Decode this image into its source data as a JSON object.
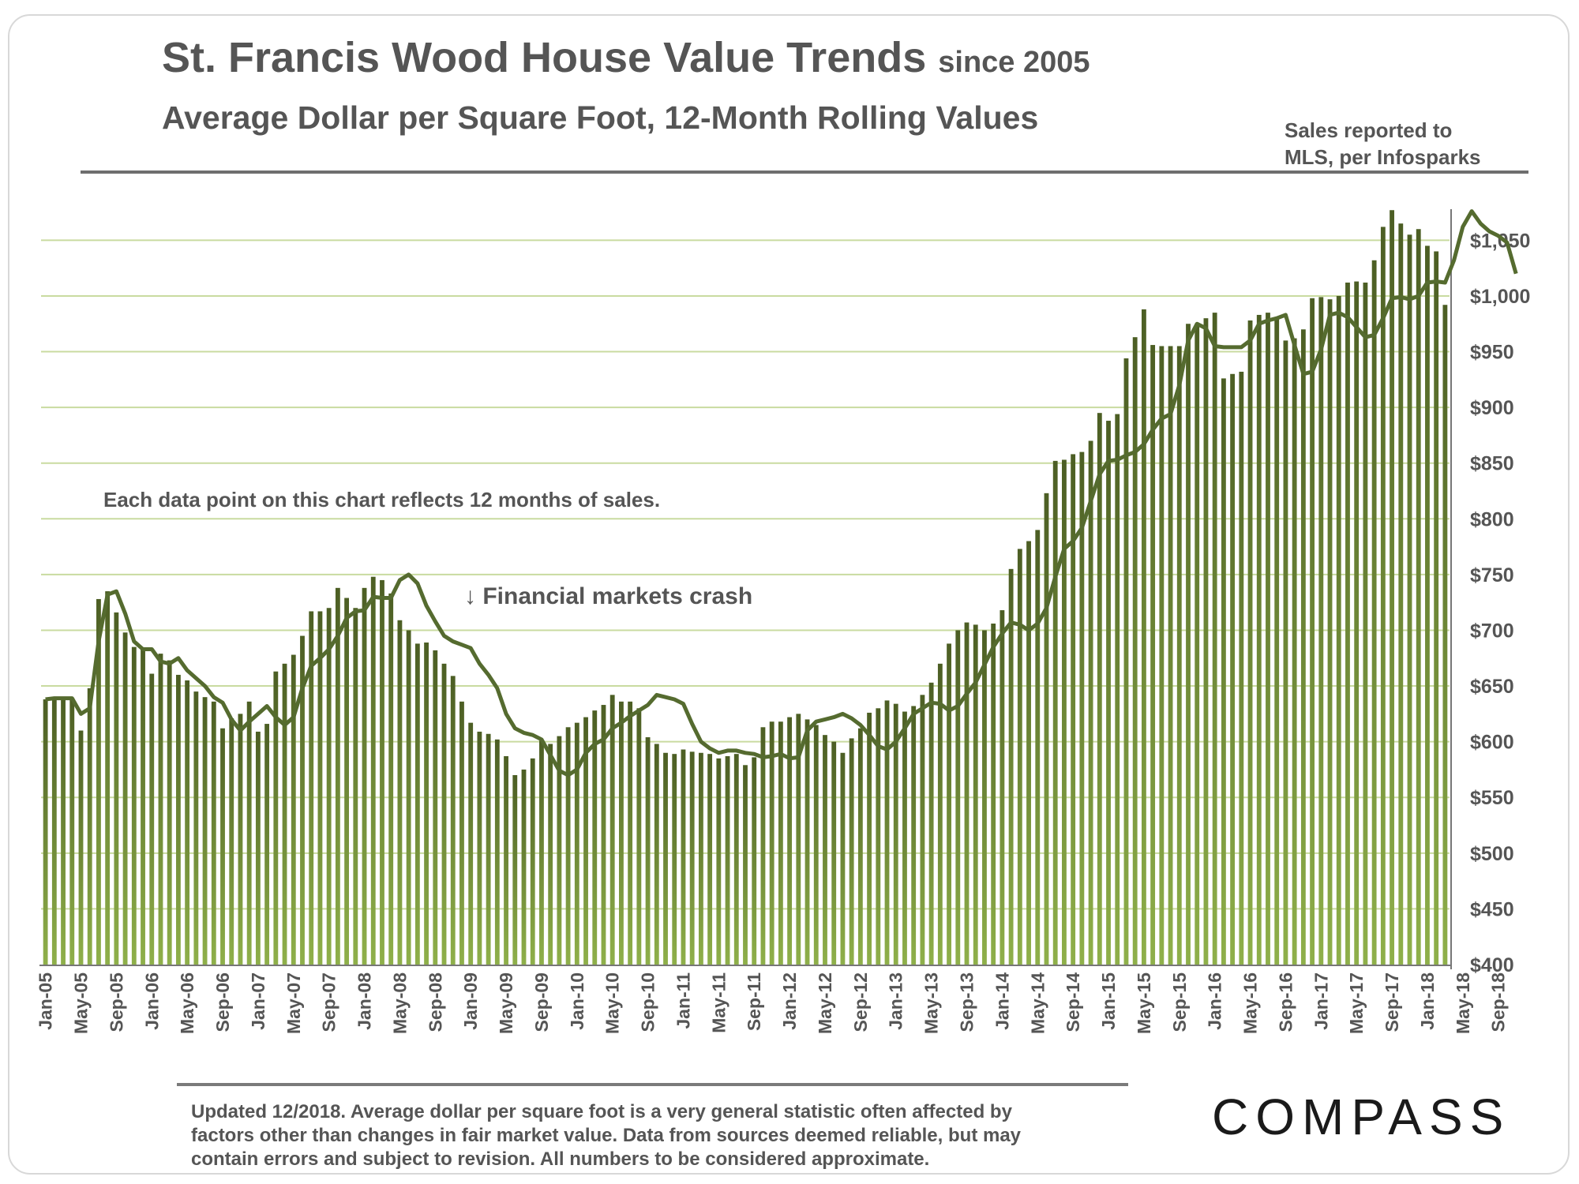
{
  "header": {
    "title_main": "St. Francis Wood House Value Trends",
    "title_suffix": "since 2005",
    "subtitle": "Average Dollar per Square Foot, 12-Month Rolling Values",
    "source_line1": "Sales reported to",
    "source_line2": "MLS, per Infosparks"
  },
  "footnote": {
    "line1": "Updated 12/2018. Average dollar per square foot is a very general statistic often affected by",
    "line2": "factors other than changes in fair market value. Data from sources deemed reliable, but may",
    "line3": "contain errors and subject to revision. All numbers to be considered approximate."
  },
  "logo": {
    "text": "COMPASS"
  },
  "colors": {
    "bar_top": "#4c5e24",
    "bar_bottom": "#8fb04a",
    "line": "#556b2f",
    "grid": "#c9dba0"
  },
  "chart_data": {
    "type": "bar",
    "title": "St. Francis Wood House Value Trends since 2005",
    "subtitle": "Average Dollar per Square Foot, 12-Month Rolling Values",
    "ylim": [
      400,
      1080
    ],
    "yticks": [
      {
        "value": 400,
        "label": "$400"
      },
      {
        "value": 450,
        "label": "$450"
      },
      {
        "value": 500,
        "label": "$500"
      },
      {
        "value": 550,
        "label": "$550"
      },
      {
        "value": 600,
        "label": "$600"
      },
      {
        "value": 650,
        "label": "$650"
      },
      {
        "value": 700,
        "label": "$700"
      },
      {
        "value": 750,
        "label": "$750"
      },
      {
        "value": 800,
        "label": "$800"
      },
      {
        "value": 850,
        "label": "$850"
      },
      {
        "value": 900,
        "label": "$900"
      },
      {
        "value": 950,
        "label": "$950"
      },
      {
        "value": 1000,
        "label": "$1,000"
      },
      {
        "value": 1050,
        "label": "$1,050"
      }
    ],
    "grid": true,
    "start_month": "Jan-05",
    "xtick_labels": [
      "Jan-05",
      "May-05",
      "Sep-05",
      "Jan-06",
      "May-06",
      "Sep-06",
      "Jan-07",
      "May-07",
      "Sep-07",
      "Jan-08",
      "May-08",
      "Sep-08",
      "Jan-09",
      "May-09",
      "Sep-09",
      "Jan-10",
      "May-10",
      "Sep-10",
      "Jan-11",
      "May-11",
      "Sep-11",
      "Jan-12",
      "May-12",
      "Sep-12",
      "Jan-13",
      "May-13",
      "Sep-13",
      "Jan-14",
      "May-14",
      "Sep-14",
      "Jan-15",
      "May-15",
      "Sep-15",
      "Jan-16",
      "May-16",
      "Sep-16",
      "Jan-17",
      "May-17",
      "Sep-17",
      "Jan-18",
      "May-18",
      "Sep-18"
    ],
    "series": [
      {
        "type": "bar",
        "values": [
          638,
          639,
          639,
          639,
          610,
          648,
          728,
          735,
          716,
          698,
          685,
          683,
          661,
          679,
          673,
          660,
          655,
          645,
          640,
          636,
          612,
          621,
          625,
          636,
          609,
          616,
          663,
          670,
          678,
          695,
          717,
          717,
          720,
          738,
          729,
          720,
          738,
          748,
          745,
          733,
          709,
          700,
          688,
          689,
          682,
          670,
          659,
          636,
          617,
          609,
          607,
          602,
          587,
          570,
          575,
          585,
          601,
          598,
          605,
          613,
          617,
          622,
          628,
          633,
          642,
          636,
          636,
          630,
          604,
          598,
          590,
          589,
          593,
          591,
          590,
          589,
          585,
          587,
          589,
          579,
          586,
          613,
          618,
          618,
          622,
          625,
          620,
          615,
          606,
          600,
          590,
          603,
          612,
          626,
          630,
          637,
          634,
          627,
          632,
          642,
          653,
          670,
          688,
          700,
          707,
          705,
          700,
          706,
          718,
          755,
          773,
          780,
          790,
          823,
          852,
          853,
          858,
          860,
          870,
          895,
          888,
          894,
          944,
          963,
          988,
          956,
          955,
          955,
          955,
          975,
          975,
          980,
          985,
          926,
          930,
          932,
          978,
          983,
          985,
          980,
          960,
          962,
          970,
          998,
          999,
          997,
          1000,
          1012,
          1013,
          1012,
          1032,
          1062,
          1077,
          1065,
          1055,
          1060,
          1045,
          1040,
          992
        ]
      },
      {
        "type": "line",
        "values": [
          638,
          639,
          639,
          639,
          625,
          630,
          690,
          732,
          735,
          715,
          690,
          683,
          683,
          672,
          670,
          675,
          664,
          657,
          650,
          640,
          635,
          620,
          610,
          618,
          625,
          632,
          622,
          615,
          622,
          648,
          668,
          675,
          683,
          695,
          711,
          717,
          718,
          730,
          729,
          729,
          745,
          750,
          742,
          722,
          708,
          695,
          690,
          687,
          684,
          670,
          660,
          648,
          625,
          612,
          608,
          606,
          602,
          588,
          574,
          570,
          575,
          590,
          598,
          602,
          612,
          617,
          623,
          628,
          633,
          642,
          640,
          638,
          634,
          616,
          600,
          594,
          590,
          592,
          592,
          590,
          589,
          586,
          587,
          589,
          585,
          586,
          610,
          618,
          620,
          622,
          625,
          621,
          615,
          606,
          596,
          593,
          600,
          612,
          625,
          630,
          635,
          634,
          628,
          632,
          643,
          653,
          669,
          685,
          697,
          707,
          705,
          700,
          706,
          720,
          748,
          773,
          780,
          792,
          816,
          840,
          852,
          853,
          857,
          860,
          867,
          880,
          890,
          894,
          920,
          960,
          975,
          971,
          955,
          954,
          954,
          954,
          960,
          975,
          978,
          980,
          983,
          956,
          930,
          932,
          952,
          983,
          985,
          981,
          972,
          963,
          965,
          980,
          998,
          999,
          997,
          1000,
          1012,
          1013,
          1012,
          1032,
          1062,
          1076,
          1065,
          1058,
          1054,
          1048,
          1020
        ]
      }
    ],
    "annotations": [
      {
        "text": "Each data point on this chart reflects 12 months of sales."
      },
      {
        "text": "↓ Financial markets crash"
      }
    ]
  }
}
